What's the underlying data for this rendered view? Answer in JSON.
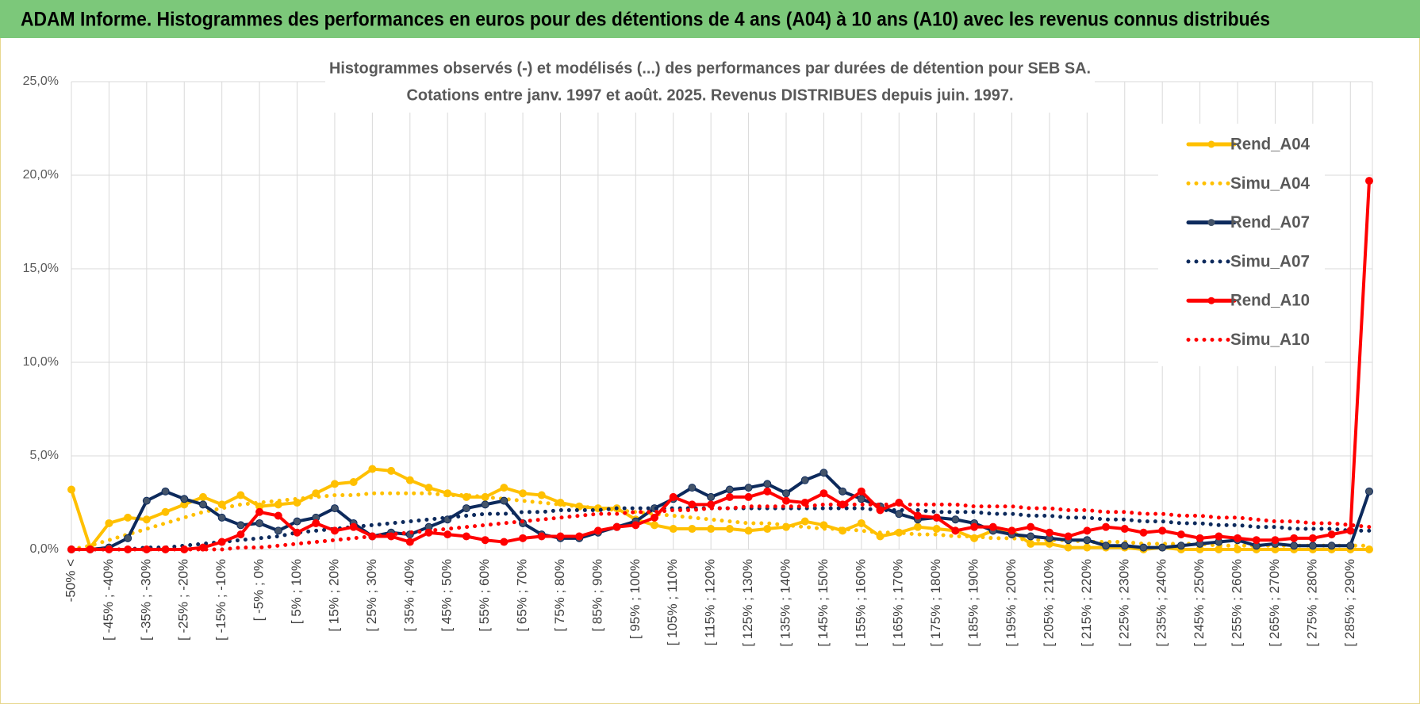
{
  "header": "ADAM Informe. Histogrammes des performances en euros pour des détentions de 4 ans (A04) à 10 ans (A10) avec les revenus connus distribués",
  "chart_data": {
    "type": "line",
    "title": "Histogrammes observés (-) et modélisés (...) des performances par durées de détention pour SEB SA.",
    "subtitle": "Cotations entre janv. 1997 et août. 2025. Revenus DISTRIBUES depuis juin. 1997.",
    "categories": [
      "-50% <",
      null,
      "[ -45% ; -40%",
      null,
      "[ -35% ; -30%",
      null,
      "[ -25% ; -20%",
      null,
      "[ -15% ; -10%",
      null,
      "[ -5% ; 0%",
      null,
      "[ 5% ; 10%",
      null,
      "[ 15% ; 20%",
      null,
      "[ 25% ; 30%",
      null,
      "[ 35% ; 40%",
      null,
      "[ 45% ; 50%",
      null,
      "[ 55% ; 60%",
      null,
      "[ 65% ; 70%",
      null,
      "[ 75% ; 80%",
      null,
      "[ 85% ; 90%",
      null,
      "[ 95% ; 100%",
      null,
      "[ 105% ; 110%",
      null,
      "[ 115% ; 120%",
      null,
      "[ 125% ; 130%",
      null,
      "[ 135% ; 140%",
      null,
      "[ 145% ; 150%",
      null,
      "[ 155% ; 160%",
      null,
      "[ 165% ; 170%",
      null,
      "[ 175% ; 180%",
      null,
      "[ 185% ; 190%",
      null,
      "[ 195% ; 200%",
      null,
      "[ 205% ; 210%",
      null,
      "[ 215% ; 220%",
      null,
      "[ 225% ; 230%",
      null,
      "[ 235% ; 240%",
      null,
      "[ 245% ; 250%",
      null,
      "[ 255% ; 260%",
      null,
      "[ 265% ; 270%",
      null,
      "[ 275% ; 280%",
      null,
      "[ 285% ; 290%",
      null
    ],
    "ylim": [
      0,
      25
    ],
    "yticks": [
      {
        "value": 0,
        "label": "0,0%"
      },
      {
        "value": 5,
        "label": "5,0%"
      },
      {
        "value": 10,
        "label": "10,0%"
      },
      {
        "value": 15,
        "label": "15,0%"
      },
      {
        "value": 20,
        "label": "20,0%"
      },
      {
        "value": 25,
        "label": "25,0%"
      }
    ],
    "grid": true,
    "legend": "right",
    "series": [
      {
        "name": "Rend_A04",
        "color": "#ffc000",
        "style": "solid",
        "values": [
          3.2,
          0.1,
          1.4,
          1.7,
          1.6,
          2.0,
          2.4,
          2.8,
          2.4,
          2.9,
          2.3,
          2.4,
          2.5,
          3.0,
          3.5,
          3.6,
          4.3,
          4.2,
          3.7,
          3.3,
          3.0,
          2.8,
          2.8,
          3.3,
          3.0,
          2.9,
          2.5,
          2.3,
          2.2,
          2.2,
          1.6,
          1.3,
          1.1,
          1.1,
          1.1,
          1.1,
          1.0,
          1.1,
          1.2,
          1.5,
          1.3,
          1.0,
          1.4,
          0.7,
          0.9,
          1.2,
          1.1,
          1.0,
          0.6,
          1.0,
          1.0,
          0.3,
          0.3,
          0.1,
          0.1,
          0.1,
          0.1,
          0.0,
          0.1,
          0.0,
          0.0,
          0.0,
          0.0,
          0.0,
          0.0,
          0.0,
          0.0,
          0.0,
          0.0,
          0.0
        ]
      },
      {
        "name": "Simu_A04",
        "color": "#ffc000",
        "style": "dotted",
        "values": [
          0.0,
          0.2,
          0.5,
          0.8,
          1.1,
          1.4,
          1.7,
          2.0,
          2.2,
          2.4,
          2.5,
          2.6,
          2.7,
          2.8,
          2.9,
          2.9,
          3.0,
          3.0,
          3.0,
          3.0,
          2.9,
          2.9,
          2.8,
          2.7,
          2.6,
          2.5,
          2.4,
          2.3,
          2.2,
          2.1,
          2.0,
          1.9,
          1.8,
          1.7,
          1.6,
          1.5,
          1.4,
          1.4,
          1.3,
          1.2,
          1.1,
          1.1,
          1.0,
          0.9,
          0.9,
          0.8,
          0.8,
          0.7,
          0.7,
          0.6,
          0.6,
          0.5,
          0.5,
          0.5,
          0.4,
          0.4,
          0.4,
          0.3,
          0.3,
          0.3,
          0.3,
          0.2,
          0.2,
          0.2,
          0.2,
          0.2,
          0.2,
          0.2,
          0.2,
          0.2
        ]
      },
      {
        "name": "Rend_A07",
        "color": "#0d2a5c",
        "style": "solid",
        "values": [
          0.0,
          0.0,
          0.1,
          0.6,
          2.6,
          3.1,
          2.7,
          2.4,
          1.7,
          1.3,
          1.4,
          1.0,
          1.5,
          1.7,
          2.2,
          1.4,
          0.7,
          0.9,
          0.8,
          1.2,
          1.6,
          2.2,
          2.4,
          2.6,
          1.4,
          0.8,
          0.6,
          0.6,
          0.9,
          1.2,
          1.5,
          2.2,
          2.7,
          3.3,
          2.8,
          3.2,
          3.3,
          3.5,
          3.0,
          3.7,
          4.1,
          3.1,
          2.7,
          2.3,
          1.9,
          1.6,
          1.7,
          1.6,
          1.4,
          1.0,
          0.8,
          0.7,
          0.6,
          0.5,
          0.5,
          0.2,
          0.2,
          0.1,
          0.1,
          0.2,
          0.3,
          0.4,
          0.5,
          0.2,
          0.3,
          0.2,
          0.2,
          0.2,
          0.2,
          3.1
        ]
      },
      {
        "name": "Simu_A07",
        "color": "#0d2a5c",
        "style": "dotted",
        "values": [
          0.0,
          0.0,
          0.0,
          0.0,
          0.1,
          0.1,
          0.2,
          0.3,
          0.4,
          0.5,
          0.6,
          0.7,
          0.9,
          1.0,
          1.1,
          1.2,
          1.3,
          1.4,
          1.5,
          1.6,
          1.7,
          1.8,
          1.9,
          1.9,
          2.0,
          2.0,
          2.1,
          2.1,
          2.1,
          2.2,
          2.2,
          2.2,
          2.2,
          2.2,
          2.2,
          2.2,
          2.2,
          2.2,
          2.2,
          2.2,
          2.2,
          2.2,
          2.2,
          2.1,
          2.1,
          2.1,
          2.0,
          2.0,
          2.0,
          1.9,
          1.9,
          1.8,
          1.8,
          1.7,
          1.7,
          1.6,
          1.6,
          1.5,
          1.5,
          1.4,
          1.4,
          1.3,
          1.3,
          1.2,
          1.2,
          1.1,
          1.1,
          1.1,
          1.0,
          1.0
        ]
      },
      {
        "name": "Rend_A10",
        "color": "#ff0000",
        "style": "solid",
        "values": [
          0.0,
          0.0,
          0.0,
          0.0,
          0.0,
          0.0,
          0.0,
          0.1,
          0.4,
          0.8,
          2.0,
          1.8,
          0.9,
          1.4,
          1.0,
          1.2,
          0.7,
          0.7,
          0.4,
          0.9,
          0.8,
          0.7,
          0.5,
          0.4,
          0.6,
          0.7,
          0.7,
          0.7,
          1.0,
          1.2,
          1.3,
          1.7,
          2.8,
          2.4,
          2.4,
          2.8,
          2.8,
          3.1,
          2.6,
          2.5,
          3.0,
          2.4,
          3.1,
          2.1,
          2.5,
          1.8,
          1.7,
          1.0,
          1.2,
          1.2,
          1.0,
          1.2,
          0.9,
          0.7,
          1.0,
          1.2,
          1.1,
          0.9,
          1.0,
          0.8,
          0.6,
          0.7,
          0.6,
          0.5,
          0.5,
          0.6,
          0.6,
          0.8,
          1.0,
          19.7
        ]
      },
      {
        "name": "Simu_A10",
        "color": "#ff0000",
        "style": "dotted",
        "values": [
          0.0,
          0.0,
          0.0,
          0.0,
          0.0,
          0.0,
          0.0,
          0.0,
          0.0,
          0.1,
          0.1,
          0.2,
          0.3,
          0.4,
          0.5,
          0.6,
          0.7,
          0.8,
          0.9,
          1.0,
          1.1,
          1.2,
          1.3,
          1.4,
          1.5,
          1.6,
          1.7,
          1.8,
          1.9,
          1.9,
          2.0,
          2.0,
          2.1,
          2.1,
          2.2,
          2.2,
          2.3,
          2.3,
          2.3,
          2.3,
          2.4,
          2.4,
          2.4,
          2.4,
          2.4,
          2.4,
          2.4,
          2.4,
          2.3,
          2.3,
          2.3,
          2.2,
          2.2,
          2.1,
          2.1,
          2.0,
          2.0,
          1.9,
          1.9,
          1.8,
          1.8,
          1.7,
          1.7,
          1.6,
          1.5,
          1.5,
          1.4,
          1.4,
          1.3,
          1.2
        ]
      }
    ]
  }
}
